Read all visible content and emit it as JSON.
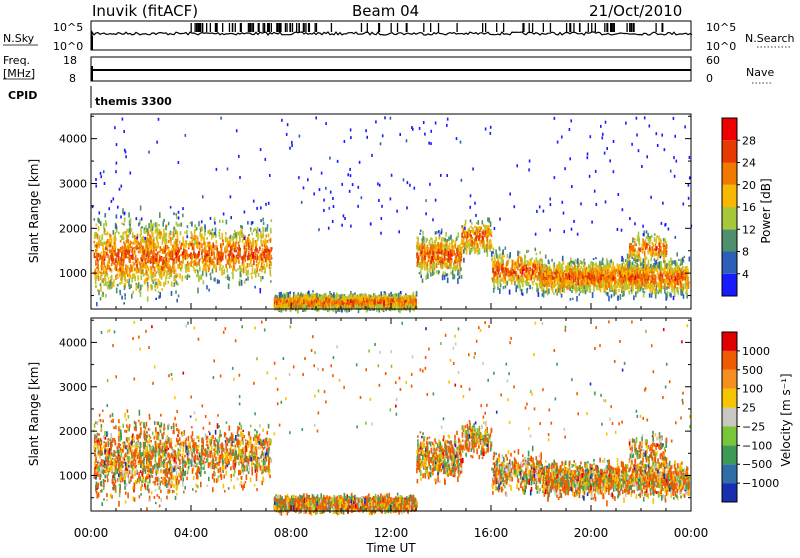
{
  "header": {
    "station": "Inuvik (fitACF)",
    "beam": "Beam 04",
    "date": "21/Oct/2010"
  },
  "side_labels": {
    "nsky": "N.Sky",
    "nsearch": "N.Search",
    "freq_line1": "Freq.",
    "freq_line2": "[MHz]",
    "nave": "Nave",
    "cpid": "CPID",
    "cpid_value": "themis 3300"
  },
  "small_axes": {
    "nsky_top": "10^5",
    "nsky_bottom": "10^0",
    "nsearch_top": "10^5",
    "nsearch_bottom": "10^0",
    "freq_top": "18",
    "freq_bottom": "8",
    "nave_top": "60",
    "nave_bottom": "0"
  },
  "chart_data": [
    {
      "type": "heatmap",
      "panel": "power",
      "ylabel": "Slant Range [km]",
      "yticks": [
        "1000",
        "2000",
        "3000",
        "4000"
      ],
      "ylim": [
        200,
        4550
      ],
      "xlim_hours": [
        0,
        24
      ],
      "colorbar_label": "Power [dB]",
      "colorbar_ticks": [
        "4",
        "8",
        "12",
        "16",
        "20",
        "24",
        "28"
      ],
      "colorbar_colors": [
        "#1a1aff",
        "#2b5fb8",
        "#4f8f6e",
        "#a8c83c",
        "#f6b800",
        "#f07a00",
        "#e63a00",
        "#ee0000"
      ]
    },
    {
      "type": "heatmap",
      "panel": "velocity",
      "ylabel": "Slant Range [km]",
      "yticks": [
        "1000",
        "2000",
        "3000",
        "4000"
      ],
      "ylim": [
        200,
        4550
      ],
      "xlim_hours": [
        0,
        24
      ],
      "colorbar_label": "Velocity [m s⁻¹]",
      "colorbar_ticks": [
        "1000",
        "500",
        "100",
        "25",
        "−25",
        "−100",
        "−500",
        "−1000"
      ],
      "colorbar_colors": [
        "#1a2fb0",
        "#2f6fa8",
        "#3f9a58",
        "#79c63a",
        "#c8c8c0",
        "#f6c400",
        "#f59020",
        "#f05a00",
        "#e00000"
      ],
      "xticks": [
        "00:00",
        "04:00",
        "08:00",
        "12:00",
        "16:00",
        "20:00",
        "00:00"
      ],
      "xlabel": "Time UT"
    }
  ]
}
